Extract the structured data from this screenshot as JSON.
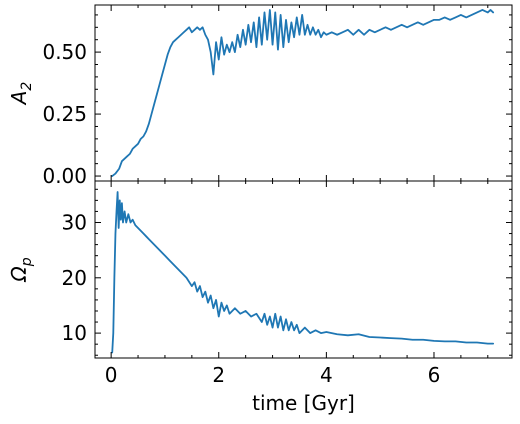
{
  "chart_data": [
    {
      "type": "line",
      "panel": "top",
      "ylabel_main": "A",
      "ylabel_sub": "2",
      "xlabel": "",
      "xlim": [
        -0.3,
        7.45
      ],
      "ylim": [
        -0.02,
        0.69
      ],
      "xticks": [
        0,
        2,
        4,
        6
      ],
      "yticks": [
        0.0,
        0.25,
        0.5
      ],
      "ytick_labels": [
        "0.00",
        "0.25",
        "0.50"
      ],
      "grid": false,
      "color": "#1f77b4",
      "series": [
        {
          "points": [
            [
              0.02,
              0.0
            ],
            [
              0.08,
              0.01
            ],
            [
              0.15,
              0.03
            ],
            [
              0.2,
              0.06
            ],
            [
              0.25,
              0.07
            ],
            [
              0.3,
              0.08
            ],
            [
              0.35,
              0.09
            ],
            [
              0.4,
              0.11
            ],
            [
              0.45,
              0.12
            ],
            [
              0.5,
              0.13
            ],
            [
              0.55,
              0.15
            ],
            [
              0.6,
              0.16
            ],
            [
              0.65,
              0.18
            ],
            [
              0.7,
              0.21
            ],
            [
              0.75,
              0.25
            ],
            [
              0.8,
              0.29
            ],
            [
              0.85,
              0.33
            ],
            [
              0.9,
              0.37
            ],
            [
              0.95,
              0.41
            ],
            [
              1.0,
              0.45
            ],
            [
              1.05,
              0.49
            ],
            [
              1.1,
              0.52
            ],
            [
              1.15,
              0.54
            ],
            [
              1.2,
              0.55
            ],
            [
              1.25,
              0.56
            ],
            [
              1.3,
              0.57
            ],
            [
              1.35,
              0.58
            ],
            [
              1.4,
              0.59
            ],
            [
              1.45,
              0.6
            ],
            [
              1.5,
              0.58
            ],
            [
              1.55,
              0.59
            ],
            [
              1.6,
              0.6
            ],
            [
              1.65,
              0.59
            ],
            [
              1.7,
              0.6
            ],
            [
              1.75,
              0.57
            ],
            [
              1.8,
              0.55
            ],
            [
              1.85,
              0.5
            ],
            [
              1.9,
              0.41
            ],
            [
              1.95,
              0.54
            ],
            [
              2.0,
              0.47
            ],
            [
              2.05,
              0.56
            ],
            [
              2.1,
              0.49
            ],
            [
              2.15,
              0.53
            ],
            [
              2.2,
              0.5
            ],
            [
              2.25,
              0.54
            ],
            [
              2.3,
              0.5
            ],
            [
              2.35,
              0.57
            ],
            [
              2.4,
              0.52
            ],
            [
              2.45,
              0.59
            ],
            [
              2.5,
              0.53
            ],
            [
              2.55,
              0.61
            ],
            [
              2.6,
              0.54
            ],
            [
              2.65,
              0.62
            ],
            [
              2.7,
              0.52
            ],
            [
              2.75,
              0.64
            ],
            [
              2.8,
              0.53
            ],
            [
              2.85,
              0.66
            ],
            [
              2.9,
              0.55
            ],
            [
              2.95,
              0.67
            ],
            [
              3.0,
              0.53
            ],
            [
              3.05,
              0.66
            ],
            [
              3.1,
              0.51
            ],
            [
              3.15,
              0.65
            ],
            [
              3.2,
              0.52
            ],
            [
              3.25,
              0.63
            ],
            [
              3.3,
              0.54
            ],
            [
              3.35,
              0.62
            ],
            [
              3.4,
              0.56
            ],
            [
              3.45,
              0.64
            ],
            [
              3.5,
              0.57
            ],
            [
              3.55,
              0.65
            ],
            [
              3.6,
              0.57
            ],
            [
              3.65,
              0.61
            ],
            [
              3.7,
              0.57
            ],
            [
              3.75,
              0.6
            ],
            [
              3.8,
              0.57
            ],
            [
              3.85,
              0.59
            ],
            [
              3.9,
              0.56
            ],
            [
              3.95,
              0.58
            ],
            [
              4.0,
              0.57
            ],
            [
              4.1,
              0.58
            ],
            [
              4.2,
              0.57
            ],
            [
              4.3,
              0.58
            ],
            [
              4.4,
              0.59
            ],
            [
              4.5,
              0.57
            ],
            [
              4.6,
              0.59
            ],
            [
              4.7,
              0.57
            ],
            [
              4.8,
              0.59
            ],
            [
              4.9,
              0.58
            ],
            [
              5.0,
              0.59
            ],
            [
              5.1,
              0.6
            ],
            [
              5.2,
              0.59
            ],
            [
              5.3,
              0.6
            ],
            [
              5.4,
              0.61
            ],
            [
              5.5,
              0.6
            ],
            [
              5.6,
              0.61
            ],
            [
              5.7,
              0.62
            ],
            [
              5.8,
              0.61
            ],
            [
              5.9,
              0.62
            ],
            [
              6.0,
              0.63
            ],
            [
              6.1,
              0.63
            ],
            [
              6.2,
              0.64
            ],
            [
              6.3,
              0.63
            ],
            [
              6.4,
              0.64
            ],
            [
              6.5,
              0.65
            ],
            [
              6.6,
              0.64
            ],
            [
              6.7,
              0.65
            ],
            [
              6.8,
              0.66
            ],
            [
              6.9,
              0.67
            ],
            [
              7.0,
              0.66
            ],
            [
              7.05,
              0.67
            ],
            [
              7.1,
              0.66
            ]
          ]
        }
      ]
    },
    {
      "type": "line",
      "panel": "bottom",
      "ylabel_main": "Ω",
      "ylabel_sub": "p",
      "xlabel": "time [Gyr]",
      "xlim": [
        -0.3,
        7.45
      ],
      "ylim": [
        5.5,
        37.5
      ],
      "xticks": [
        0,
        2,
        4,
        6
      ],
      "xtick_labels": [
        "0",
        "2",
        "4",
        "6"
      ],
      "yticks": [
        10,
        20,
        30
      ],
      "ytick_labels": [
        "10",
        "20",
        "30"
      ],
      "grid": false,
      "color": "#1f77b4",
      "series": [
        {
          "points": [
            [
              0.02,
              6.5
            ],
            [
              0.04,
              10.0
            ],
            [
              0.06,
              20.0
            ],
            [
              0.08,
              28.0
            ],
            [
              0.1,
              32.0
            ],
            [
              0.12,
              35.5
            ],
            [
              0.14,
              29.0
            ],
            [
              0.16,
              34.0
            ],
            [
              0.18,
              30.5
            ],
            [
              0.2,
              33.5
            ],
            [
              0.22,
              30.0
            ],
            [
              0.25,
              32.0
            ],
            [
              0.28,
              30.0
            ],
            [
              0.32,
              31.5
            ],
            [
              0.36,
              30.0
            ],
            [
              0.4,
              30.5
            ],
            [
              0.45,
              29.5
            ],
            [
              0.5,
              29.0
            ],
            [
              0.55,
              28.5
            ],
            [
              0.6,
              28.0
            ],
            [
              0.65,
              27.5
            ],
            [
              0.7,
              27.0
            ],
            [
              0.75,
              26.5
            ],
            [
              0.8,
              26.0
            ],
            [
              0.9,
              25.0
            ],
            [
              1.0,
              24.0
            ],
            [
              1.1,
              23.0
            ],
            [
              1.2,
              22.0
            ],
            [
              1.3,
              21.0
            ],
            [
              1.4,
              20.0
            ],
            [
              1.5,
              18.5
            ],
            [
              1.55,
              19.2
            ],
            [
              1.6,
              17.5
            ],
            [
              1.65,
              18.5
            ],
            [
              1.7,
              16.5
            ],
            [
              1.75,
              17.5
            ],
            [
              1.8,
              15.5
            ],
            [
              1.85,
              16.8
            ],
            [
              1.9,
              14.5
            ],
            [
              1.95,
              16.0
            ],
            [
              2.0,
              13.0
            ],
            [
              2.05,
              15.5
            ],
            [
              2.1,
              14.0
            ],
            [
              2.15,
              15.0
            ],
            [
              2.2,
              13.5
            ],
            [
              2.3,
              14.5
            ],
            [
              2.4,
              13.5
            ],
            [
              2.5,
              14.0
            ],
            [
              2.6,
              13.0
            ],
            [
              2.7,
              13.5
            ],
            [
              2.8,
              12.0
            ],
            [
              2.85,
              13.5
            ],
            [
              2.9,
              11.5
            ],
            [
              2.95,
              13.0
            ],
            [
              3.0,
              11.0
            ],
            [
              3.05,
              13.5
            ],
            [
              3.1,
              11.0
            ],
            [
              3.15,
              13.0
            ],
            [
              3.2,
              10.5
            ],
            [
              3.25,
              12.5
            ],
            [
              3.3,
              10.5
            ],
            [
              3.35,
              12.0
            ],
            [
              3.4,
              10.5
            ],
            [
              3.45,
              11.5
            ],
            [
              3.5,
              10.0
            ],
            [
              3.6,
              11.0
            ],
            [
              3.7,
              10.0
            ],
            [
              3.8,
              10.5
            ],
            [
              3.9,
              10.0
            ],
            [
              4.0,
              10.2
            ],
            [
              4.2,
              9.8
            ],
            [
              4.4,
              9.6
            ],
            [
              4.6,
              9.8
            ],
            [
              4.8,
              9.3
            ],
            [
              5.0,
              9.2
            ],
            [
              5.2,
              9.1
            ],
            [
              5.4,
              9.0
            ],
            [
              5.6,
              8.8
            ],
            [
              5.8,
              8.8
            ],
            [
              6.0,
              8.6
            ],
            [
              6.2,
              8.5
            ],
            [
              6.4,
              8.5
            ],
            [
              6.6,
              8.3
            ],
            [
              6.8,
              8.3
            ],
            [
              7.0,
              8.1
            ],
            [
              7.1,
              8.1
            ]
          ]
        }
      ]
    }
  ]
}
